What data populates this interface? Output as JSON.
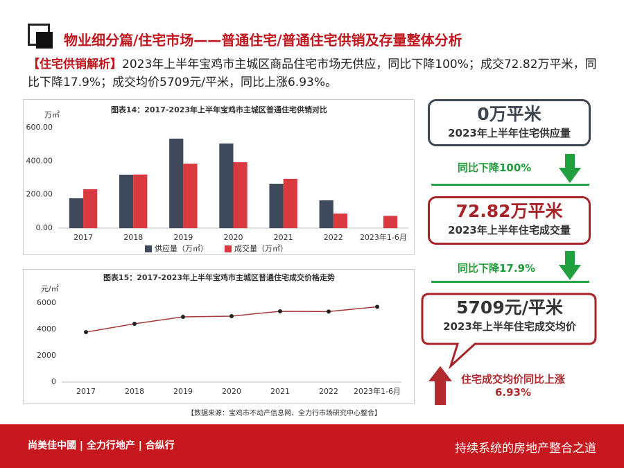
{
  "header": {
    "title": "物业细分篇/住宅市场——普通住宅/普通住宅供销及存量整体分析"
  },
  "analysis": {
    "tag": "【住宅供销解析】",
    "text": "2023年上半年宝鸡市主城区商品住宅市场无供应，同比下降100%；成交72.82万平米，同比下降17.9%；成交均价5709元/平米，同比上涨6.93%。"
  },
  "chart_data": [
    {
      "type": "bar",
      "title": "图表14：2017-2023年上半年宝鸡市主城区普通住宅供销对比",
      "y_label": "万㎡",
      "categories": [
        "2017",
        "2018",
        "2019",
        "2020",
        "2021",
        "2022",
        "2023年1-6月"
      ],
      "series": [
        {
          "name": "供应量（万㎡）",
          "color": "#3e4a5c",
          "values": [
            178,
            319,
            534,
            505,
            265,
            166,
            0
          ]
        },
        {
          "name": "成交量（万㎡）",
          "color": "#d93a40",
          "values": [
            232,
            320,
            385,
            393,
            294,
            87,
            72.82
          ]
        }
      ],
      "ylim": [
        0,
        600
      ],
      "yticks": [
        {
          "value": 0,
          "label": "0.00"
        },
        {
          "value": 200,
          "label": "200.00"
        },
        {
          "value": 400,
          "label": "400.00"
        },
        {
          "value": 600,
          "label": "600.00"
        }
      ],
      "grid": false,
      "legend": "bottom"
    },
    {
      "type": "line",
      "title": "图表15：2017-2023年上半年宝鸡市主城区普通住宅成交价格走势",
      "y_label": "元/㎡",
      "categories": [
        "2017",
        "2018",
        "2019",
        "2020",
        "2021",
        "2022",
        "2023年1-6月"
      ],
      "series": [
        {
          "name": "成交均价",
          "color": "#a8383b",
          "values": [
            3790,
            4420,
            4950,
            5000,
            5370,
            5350,
            5709
          ]
        }
      ],
      "ylim": [
        0,
        6000
      ],
      "yticks": [
        0,
        2000,
        4000,
        6000
      ],
      "grid": false
    }
  ],
  "callouts": {
    "supply_value": "0万平米",
    "supply_label": "2023年上半年住宅供应量",
    "supply_change": "同比下降100%",
    "sales_value": "72.82万平米",
    "sales_label": "2023年上半年住宅成交量",
    "sales_change": "同比下降17.9%",
    "price_value": "5709元/平米",
    "price_label": "2023年上半年住宅成交均价",
    "price_change_1": "住宅成交均价同比上涨",
    "price_change_2": "6.93%"
  },
  "source": "【数据来源：宝鸡市不动产信息网、全力行市场研究中心整合】",
  "footer": {
    "logos": "尚美佳中國 | 全力行地产 | 合纵行",
    "slogan": "持续系统的房地产整合之道"
  }
}
